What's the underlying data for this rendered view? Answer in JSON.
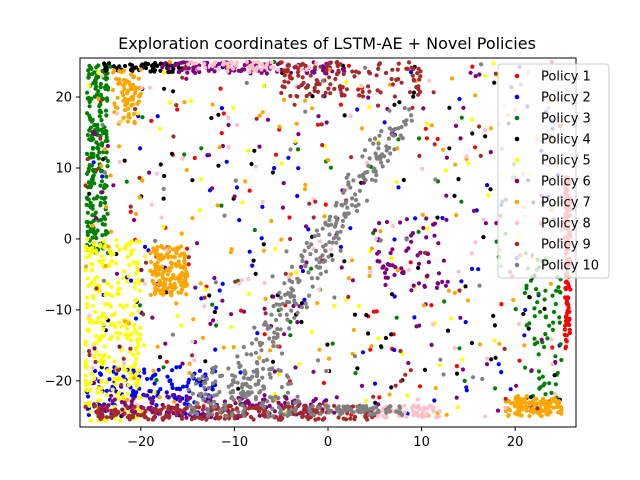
{
  "chart_data": {
    "type": "scatter",
    "title": "Exploration coordinates of LSTM-AE + Novel Policies",
    "xlabel": "",
    "ylabel": "",
    "xlim": [
      -26.5,
      26.5
    ],
    "ylim": [
      -26.5,
      25.5
    ],
    "x_ticks": [
      -20,
      -10,
      0,
      10,
      20
    ],
    "y_ticks": [
      -20,
      -10,
      0,
      10,
      20
    ],
    "grid": false,
    "legend_position": "top-right",
    "series": [
      {
        "name": "Policy 1",
        "color": "#ff0000",
        "clusters": [
          {
            "kind": "box",
            "x": [
              25.3,
              25.9
            ],
            "y": [
              -15.5,
              9
            ],
            "n": 120
          },
          {
            "kind": "box",
            "x": [
              -26,
              25
            ],
            "y": [
              -25,
              25
            ],
            "n": 70
          }
        ]
      },
      {
        "name": "Policy 2",
        "color": "#0000ff",
        "clusters": [
          {
            "kind": "box",
            "x": [
              -25.8,
              -12
            ],
            "y": [
              -25.2,
              -18
            ],
            "n": 150
          },
          {
            "kind": "box",
            "x": [
              -26,
              25
            ],
            "y": [
              -25,
              25
            ],
            "n": 90
          }
        ]
      },
      {
        "name": "Policy 3",
        "color": "#008000",
        "clusters": [
          {
            "kind": "box",
            "x": [
              -25.8,
              -23.5
            ],
            "y": [
              -2,
              24.5
            ],
            "n": 230
          },
          {
            "kind": "box",
            "x": [
              21,
              25
            ],
            "y": [
              -23,
              -2
            ],
            "n": 70
          },
          {
            "kind": "box",
            "x": [
              -26,
              25
            ],
            "y": [
              -25,
              25
            ],
            "n": 60
          }
        ]
      },
      {
        "name": "Policy 4",
        "color": "#000000",
        "clusters": [
          {
            "kind": "box",
            "x": [
              -24,
              -15
            ],
            "y": [
              23.5,
              24.8
            ],
            "n": 60
          },
          {
            "kind": "box",
            "x": [
              -26,
              25
            ],
            "y": [
              -25,
              25
            ],
            "n": 110
          }
        ]
      },
      {
        "name": "Policy 5",
        "color": "#ffff00",
        "clusters": [
          {
            "kind": "box",
            "x": [
              -26,
              -20
            ],
            "y": [
              -26,
              0
            ],
            "n": 300
          },
          {
            "kind": "box",
            "x": [
              -26,
              25
            ],
            "y": [
              -25,
              25
            ],
            "n": 80
          }
        ]
      },
      {
        "name": "Policy 6",
        "color": "#800080",
        "clusters": [
          {
            "kind": "box",
            "x": [
              -18,
              2
            ],
            "y": [
              23.3,
              24.9
            ],
            "n": 110
          },
          {
            "kind": "box",
            "x": [
              -25,
              0
            ],
            "y": [
              -25.3,
              -22
            ],
            "n": 140
          },
          {
            "kind": "box",
            "x": [
              5,
              13
            ],
            "y": [
              -7,
              3
            ],
            "n": 60
          },
          {
            "kind": "box",
            "x": [
              -26,
              25
            ],
            "y": [
              -25,
              25
            ],
            "n": 110
          }
        ]
      },
      {
        "name": "Policy 7",
        "color": "#ffa500",
        "clusters": [
          {
            "kind": "box",
            "x": [
              -19,
              -15
            ],
            "y": [
              -8,
              -1
            ],
            "n": 150
          },
          {
            "kind": "box",
            "x": [
              -23,
              -20
            ],
            "y": [
              16,
              24
            ],
            "n": 70
          },
          {
            "kind": "box",
            "x": [
              19,
              25
            ],
            "y": [
              -25,
              -22.5
            ],
            "n": 120
          },
          {
            "kind": "box",
            "x": [
              -26,
              25
            ],
            "y": [
              -25,
              25
            ],
            "n": 130
          }
        ]
      },
      {
        "name": "Policy 8",
        "color": "#ffc0cb",
        "clusters": [
          {
            "kind": "box",
            "x": [
              -15,
              -1
            ],
            "y": [
              23.5,
              25
            ],
            "n": 60
          },
          {
            "kind": "box",
            "x": [
              5,
              12
            ],
            "y": [
              -25.2,
              -23.5
            ],
            "n": 60
          },
          {
            "kind": "box",
            "x": [
              -26,
              25
            ],
            "y": [
              -25,
              25
            ],
            "n": 80
          }
        ]
      },
      {
        "name": "Policy 9",
        "color": "#a52a2a",
        "clusters": [
          {
            "kind": "box",
            "x": [
              -5,
              10
            ],
            "y": [
              20,
              25
            ],
            "n": 120
          },
          {
            "kind": "box",
            "x": [
              -25,
              5
            ],
            "y": [
              -25.5,
              -23.5
            ],
            "n": 240
          },
          {
            "kind": "box",
            "x": [
              -26,
              25
            ],
            "y": [
              -25,
              25
            ],
            "n": 60
          }
        ]
      },
      {
        "name": "Policy 10",
        "color": "#808080",
        "clusters": [
          {
            "kind": "line",
            "from": [
              -10,
              -22
            ],
            "to": [
              8,
              18
            ],
            "spread": 1.6,
            "n": 240
          },
          {
            "kind": "box",
            "x": [
              -15,
              -3
            ],
            "y": [
              -25,
              -18
            ],
            "n": 140
          },
          {
            "kind": "box",
            "x": [
              -2,
              8
            ],
            "y": [
              -24.8,
              -23.5
            ],
            "n": 70
          },
          {
            "kind": "box",
            "x": [
              -26,
              25
            ],
            "y": [
              -25,
              25
            ],
            "n": 50
          }
        ]
      }
    ]
  }
}
